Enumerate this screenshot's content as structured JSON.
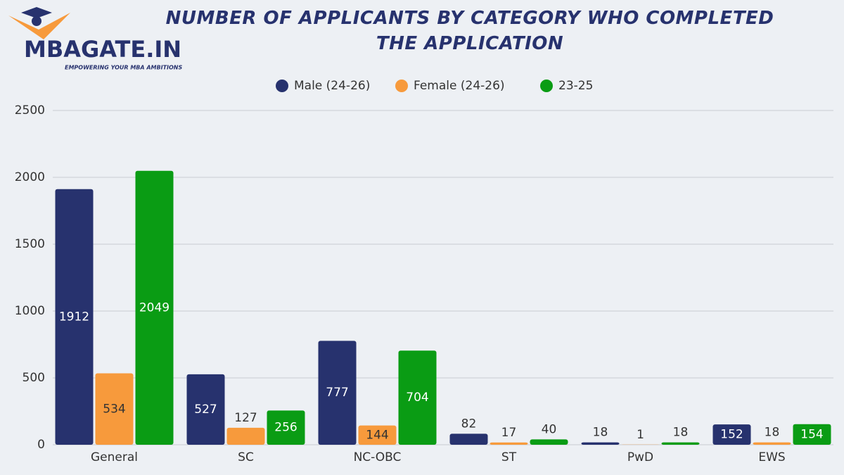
{
  "logo": {
    "name": "MBAGATE.IN",
    "tagline": "EMPOWERING YOUR MBA AMBITIONS"
  },
  "chart_data": {
    "type": "bar",
    "title": "NUMBER OF APPLICANTS BY CATEGORY WHO COMPLETED THE APPLICATION",
    "categories": [
      "General",
      "SC",
      "NC-OBC",
      "ST",
      "PwD",
      "EWS"
    ],
    "series": [
      {
        "name": "Male (24-26)",
        "color": "#27326e",
        "values": [
          1912,
          527,
          777,
          82,
          18,
          152
        ]
      },
      {
        "name": "Female (24-26)",
        "color": "#f79a3c",
        "values": [
          534,
          127,
          144,
          17,
          1,
          18
        ]
      },
      {
        "name": "23-25",
        "color": "#0a9c14",
        "values": [
          2049,
          256,
          704,
          40,
          18,
          154
        ]
      }
    ],
    "ylim": [
      0,
      2500
    ],
    "yticks": [
      0,
      500,
      1000,
      1500,
      2000,
      2500
    ],
    "grid": true,
    "legend": "top"
  }
}
